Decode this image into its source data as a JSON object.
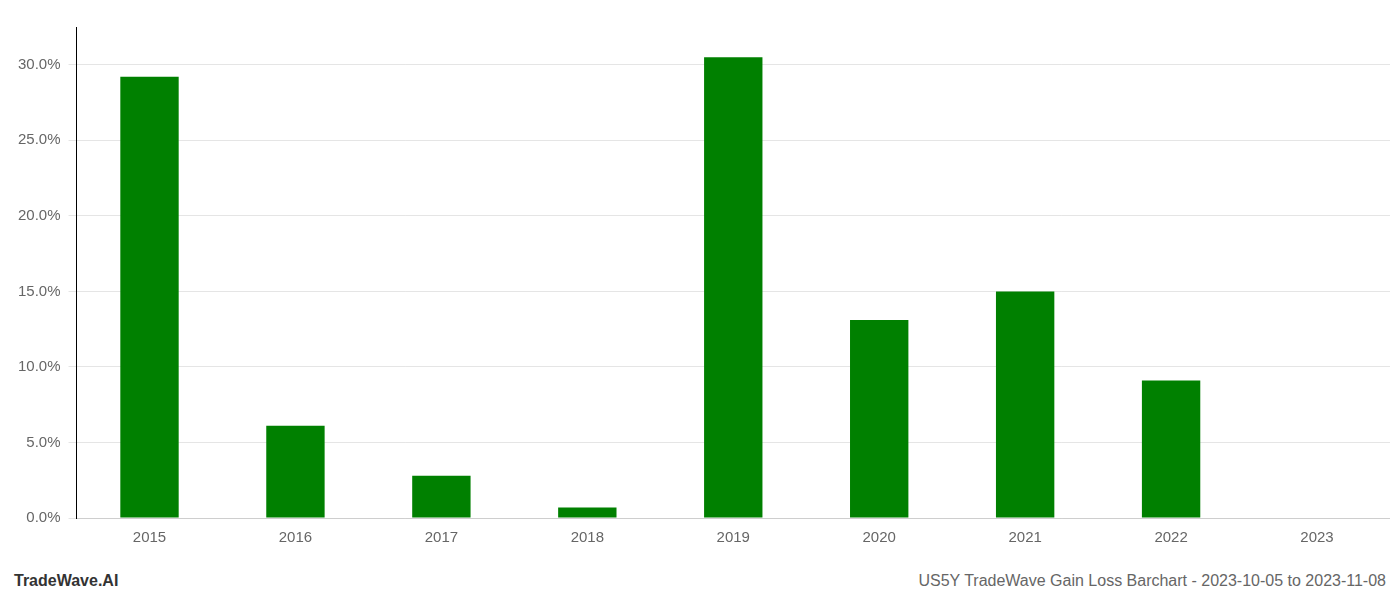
{
  "chart_data": {
    "type": "bar",
    "categories": [
      "2015",
      "2016",
      "2017",
      "2018",
      "2019",
      "2020",
      "2021",
      "2022",
      "2023"
    ],
    "values": [
      0.292,
      0.061,
      0.028,
      0.007,
      0.305,
      0.131,
      0.15,
      0.091,
      0.0
    ],
    "color": "#008000",
    "ylim": [
      0,
      0.325
    ],
    "yticks": [
      {
        "value": 0.0,
        "label": "0.0%"
      },
      {
        "value": 0.05,
        "label": "5.0%"
      },
      {
        "value": 0.1,
        "label": "10.0%"
      },
      {
        "value": 0.15,
        "label": "15.0%"
      },
      {
        "value": 0.2,
        "label": "20.0%"
      },
      {
        "value": 0.25,
        "label": "25.0%"
      },
      {
        "value": 0.3,
        "label": "30.0%"
      }
    ],
    "grid": true,
    "annotations": [
      "TradeWave.AI",
      "US5Y TradeWave Gain Loss Barchart - 2023-10-05 to 2023-11-08"
    ]
  }
}
